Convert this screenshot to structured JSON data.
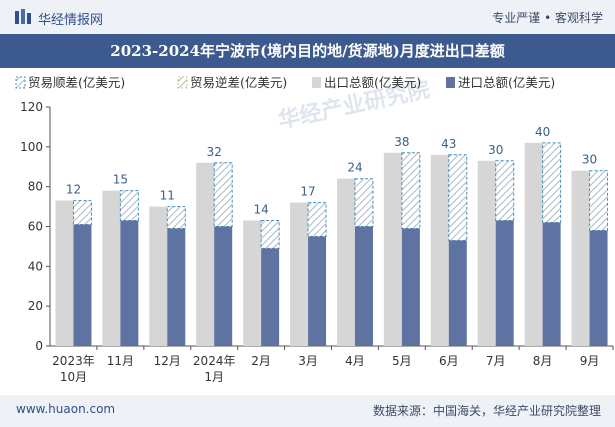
{
  "header": {
    "brand": "华经情报网",
    "tagline": "专业严谨 • 客观科学"
  },
  "footer": {
    "site": "www.huaon.com",
    "source": "数据来源：中国海关，华经产业研究院整理"
  },
  "watermark": "华经产业研究院",
  "colors": {
    "export": "#d6d6d6",
    "import": "#5f73a3",
    "deficit_border": "#4a8fb8",
    "surplus_border": "#e3c34a",
    "label": "#3a5f8a"
  },
  "chart_data": {
    "type": "bar",
    "title": "2023-2024年宁波市(境内目的地/货源地)月度进出口差额",
    "categories": [
      [
        "2023年",
        "10月"
      ],
      [
        "11月"
      ],
      [
        "12月"
      ],
      [
        "2024年",
        "1月"
      ],
      [
        "2月"
      ],
      [
        "3月"
      ],
      [
        "4月"
      ],
      [
        "5月"
      ],
      [
        "6月"
      ],
      [
        "7月"
      ],
      [
        "8月"
      ],
      [
        "9月"
      ]
    ],
    "legend": [
      "贸易顺差(亿美元)",
      "贸易逆差(亿美元)",
      "出口总额(亿美元)",
      "进口总额(亿美元)"
    ],
    "series": [
      {
        "name": "出口总额(亿美元)",
        "values": [
          73,
          78,
          70,
          92,
          63,
          72,
          84,
          97,
          96,
          93,
          102,
          88
        ]
      },
      {
        "name": "进口总额(亿美元)",
        "values": [
          61,
          63,
          59,
          60,
          49,
          55,
          60,
          59,
          53,
          63,
          62,
          58
        ]
      },
      {
        "name": "贸易顺差(亿美元)",
        "values": [
          12,
          15,
          11,
          32,
          14,
          17,
          24,
          38,
          43,
          30,
          40,
          30
        ]
      }
    ],
    "ylim": [
      0,
      120
    ],
    "yticks": [
      0,
      20,
      40,
      60,
      80,
      100,
      120
    ],
    "xlabel": "",
    "ylabel": ""
  }
}
